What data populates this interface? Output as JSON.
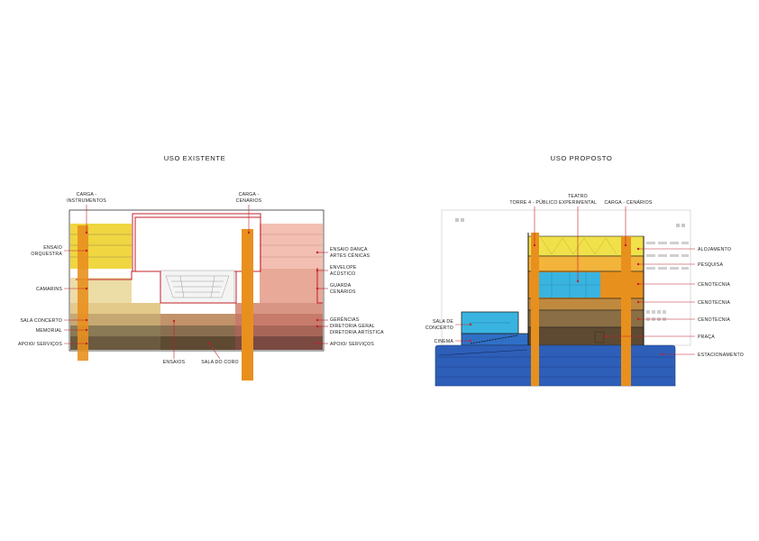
{
  "colors": {
    "red_line": "#c0202a",
    "orange": "#e8901e",
    "yellow": "#f0d640",
    "beige": "#e3c98a",
    "brown": "#8a6e45",
    "dark_brown": "#5e4a32",
    "salmon": "#f3bfb2",
    "rose": "#e09a86",
    "blue": "#2e5fb8",
    "cyan": "#39b4e0"
  },
  "existing": {
    "title": "USO EXISTENTE",
    "labels": {
      "carga_instrumentos": [
        "CARGA -",
        "INSTRUMENTOS"
      ],
      "carga_cenarios": [
        "CARGA -",
        "CENÁRIOS"
      ],
      "ensaio_orquestra": [
        "ENSAIO",
        "ORQUESTRA"
      ],
      "camarins": "CAMARINS",
      "sala_concerto": "SALA CONCERTO",
      "memorial": "MEMORIAL",
      "apoio_servicos_left": "APOIO/ SERVIÇOS",
      "ensaio_danca": [
        "ENSAIO DANÇA",
        "ARTES CÊNICAS"
      ],
      "envelope_acustico": [
        "ENVELOPE",
        "ACÚSTICO"
      ],
      "guarda_cenarios": [
        "GUARDA",
        "CENÁRIOS"
      ],
      "gerencias": [
        "GERÊNCIAS",
        "DIRETORIA GERAL",
        "DIRETORIA ARTÍSTICA"
      ],
      "apoio_servicos_right": "APOIO/ SERVIÇOS",
      "ensaios": "ENSAIOS",
      "sala_do_coro": "SALA DO CORO"
    }
  },
  "proposed": {
    "title": "USO PROPOSTO",
    "labels": {
      "torre_publico": "TORRE 4 - PÚBLICO",
      "teatro_experimental": [
        "TEATRO",
        "EXPERIMENTAL"
      ],
      "carga_cenarios": "CARGA - CENÁRIOS",
      "alojamento": "ALOJAMENTO",
      "pesquisa": "PESQUISA",
      "cenotecnia_1": "CENOTECNIA",
      "cenotecnia_2": "CENOTECNIA",
      "cenotecnia_3": "CENOTECNIA",
      "praca": "PRAÇA",
      "estacionamento": "ESTACIONAMENTO",
      "sala_de_concerto": [
        "SALA DE",
        "CONCERTO"
      ],
      "cinema": "CINEMA"
    }
  }
}
